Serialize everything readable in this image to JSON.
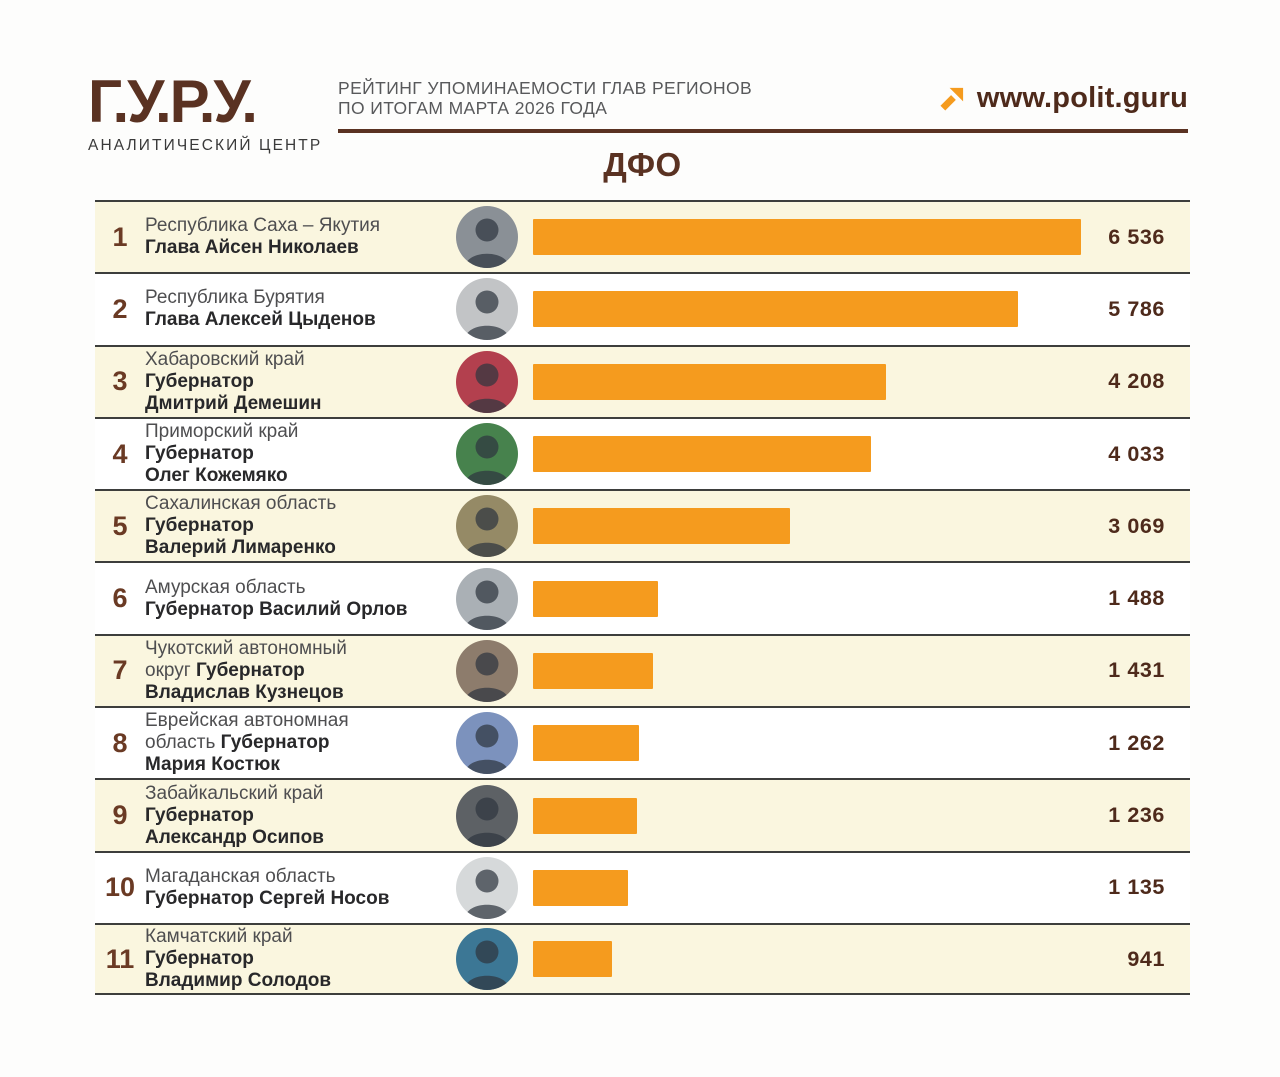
{
  "header": {
    "logo": {
      "title": "Г.У.Р.У.",
      "subtitle": "АНАЛИТИЧЕСКИЙ ЦЕНТР"
    },
    "title_line1": "РЕЙТИНГ УПОМИНАЕМОСТИ ГЛАВ РЕГИОНОВ",
    "title_line2": "ПО ИТОГАМ МАРТА 2026 ГОДА",
    "website": "www.polit.guru",
    "website_arrow_icon": "arrow-up-right"
  },
  "section_title": "ДФО",
  "colors": {
    "brand_brown": "#5a3222",
    "value_brown": "#4e2a1b",
    "rank_brown": "#6a3a24",
    "bar_orange": "#f59b1e",
    "row_cream": "#faf6df",
    "row_white": "#ffffff",
    "border_dark": "#3d3e3c",
    "header_gray": "#58595b"
  },
  "chart_data": {
    "type": "bar",
    "orientation": "horizontal",
    "title": "ДФО",
    "subtitle": "Рейтинг упоминаемости глав регионов по итогам марта 2026 года",
    "max_value": 6536,
    "bar_color": "#f59b1e",
    "categories": [
      "Республика Саха – Якутия — Глава Айсен Николаев",
      "Республика Бурятия — Глава Алексей Цыденов",
      "Хабаровский край — Губернатор Дмитрий Демешин",
      "Приморский край — Губернатор Олег Кожемяко",
      "Сахалинская область — Губернатор Валерий Лимаренко",
      "Амурская область — Губернатор Василий Орлов",
      "Чукотский автономный округ — Губернатор Владислав Кузнецов",
      "Еврейская автономная область — Губернатор Мария Костюк",
      "Забайкальский край — Губернатор Александр Осипов",
      "Магаданская область — Губернатор Сергей Носов",
      "Камчатский край — Губернатор Владимир Солодов"
    ],
    "values": [
      6536,
      5786,
      4208,
      4033,
      3069,
      1488,
      1431,
      1262,
      1236,
      1135,
      941
    ],
    "rows": [
      {
        "rank": "1",
        "region": "Республика Саха – Якутия",
        "head": "Глава Айсен Николаев",
        "value": 6536,
        "value_label": "6 536",
        "avatar_color": "#8a9096",
        "lines": [
          [
            {
              "text": "Республика Саха – Якутия",
              "bold": false
            }
          ],
          [
            {
              "text": "Глава Айсен Николаев",
              "bold": true
            }
          ]
        ]
      },
      {
        "rank": "2",
        "region": "Республика Бурятия",
        "head": "Глава Алексей Цыденов",
        "value": 5786,
        "value_label": "5 786",
        "avatar_color": "#c2c4c6",
        "lines": [
          [
            {
              "text": "Республика Бурятия",
              "bold": false
            }
          ],
          [
            {
              "text": "Глава Алексей Цыденов",
              "bold": true
            }
          ]
        ]
      },
      {
        "rank": "3",
        "region": "Хабаровский край",
        "head": "Губернатор Дмитрий Демешин",
        "value": 4208,
        "value_label": "4 208",
        "avatar_color": "#b3404e",
        "lines": [
          [
            {
              "text": "Хабаровский край",
              "bold": false
            }
          ],
          [
            {
              "text": "Губернатор",
              "bold": true
            }
          ],
          [
            {
              "text": "Дмитрий Демешин",
              "bold": true
            }
          ]
        ]
      },
      {
        "rank": "4",
        "region": "Приморский край",
        "head": "Губернатор Олег Кожемяко",
        "value": 4033,
        "value_label": "4 033",
        "avatar_color": "#47824d",
        "lines": [
          [
            {
              "text": "Приморский край",
              "bold": false
            }
          ],
          [
            {
              "text": "Губернатор",
              "bold": true
            }
          ],
          [
            {
              "text": "Олег Кожемяко",
              "bold": true
            }
          ]
        ]
      },
      {
        "rank": "5",
        "region": "Сахалинская область",
        "head": "Губернатор Валерий Лимаренко",
        "value": 3069,
        "value_label": "3 069",
        "avatar_color": "#958a66",
        "lines": [
          [
            {
              "text": "Сахалинская область",
              "bold": false
            }
          ],
          [
            {
              "text": "Губернатор",
              "bold": true
            }
          ],
          [
            {
              "text": "Валерий Лимаренко",
              "bold": true
            }
          ]
        ]
      },
      {
        "rank": "6",
        "region": "Амурская область",
        "head": "Губернатор Василий Орлов",
        "value": 1488,
        "value_label": "1 488",
        "avatar_color": "#aab0b5",
        "lines": [
          [
            {
              "text": "Амурская область",
              "bold": false
            }
          ],
          [
            {
              "text": "Губернатор Василий Орлов",
              "bold": true
            }
          ]
        ]
      },
      {
        "rank": "7",
        "region": "Чукотский автономный округ",
        "head": "Губернатор Владислав Кузнецов",
        "value": 1431,
        "value_label": "1 431",
        "avatar_color": "#8d7c6c",
        "lines": [
          [
            {
              "text": "Чукотский автономный",
              "bold": false
            }
          ],
          [
            {
              "text": "округ ",
              "bold": false
            },
            {
              "text": "Губернатор",
              "bold": true
            }
          ],
          [
            {
              "text": "Владислав Кузнецов",
              "bold": true
            }
          ]
        ]
      },
      {
        "rank": "8",
        "region": "Еврейская автономная область",
        "head": "Губернатор Мария Костюк",
        "value": 1262,
        "value_label": "1 262",
        "avatar_color": "#7c92bd",
        "lines": [
          [
            {
              "text": "Еврейская автономная",
              "bold": false
            }
          ],
          [
            {
              "text": "область ",
              "bold": false
            },
            {
              "text": "Губернатор",
              "bold": true
            }
          ],
          [
            {
              "text": "Мария Костюк",
              "bold": true
            }
          ]
        ]
      },
      {
        "rank": "9",
        "region": "Забайкальский край",
        "head": "Губернатор Александр Осипов",
        "value": 1236,
        "value_label": "1 236",
        "avatar_color": "#5d6165",
        "lines": [
          [
            {
              "text": "Забайкальский край",
              "bold": false
            }
          ],
          [
            {
              "text": "Губернатор",
              "bold": true
            }
          ],
          [
            {
              "text": "Александр Осипов",
              "bold": true
            }
          ]
        ]
      },
      {
        "rank": "10",
        "region": "Магаданская область",
        "head": "Губернатор Сергей Носов",
        "value": 1135,
        "value_label": "1 135",
        "avatar_color": "#d6d9da",
        "lines": [
          [
            {
              "text": "Магаданская область",
              "bold": false
            }
          ],
          [
            {
              "text": "Губернатор Сергей Носов",
              "bold": true
            }
          ]
        ]
      },
      {
        "rank": "11",
        "region": "Камчатский край",
        "head": "Губернатор Владимир Солодов",
        "value": 941,
        "value_label": "941",
        "avatar_color": "#3c7795",
        "lines": [
          [
            {
              "text": "Камчатский край",
              "bold": false
            }
          ],
          [
            {
              "text": "Губернатор",
              "bold": true
            }
          ],
          [
            {
              "text": "Владимир Солодов",
              "bold": true
            }
          ]
        ]
      }
    ]
  }
}
